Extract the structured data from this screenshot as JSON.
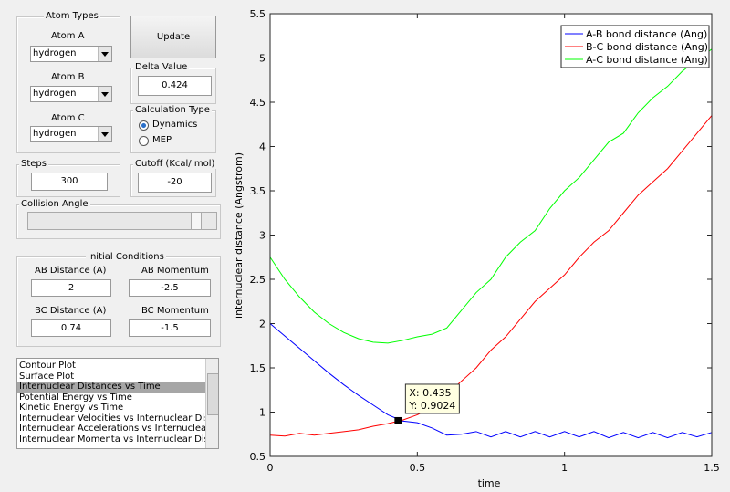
{
  "atom_types": {
    "title": "Atom Types",
    "atom_a_label": "Atom A",
    "atom_a": "hydrogen",
    "atom_b_label": "Atom B",
    "atom_b": "hydrogen",
    "atom_c_label": "Atom C",
    "atom_c": "hydrogen"
  },
  "update_button": "Update",
  "delta_value": {
    "label": "Delta Value",
    "value": "0.424"
  },
  "calculation_type": {
    "title": "Calculation Type",
    "options": [
      "Dynamics",
      "MEP"
    ],
    "selected": 0
  },
  "steps": {
    "label": "Steps",
    "value": "300"
  },
  "cutoff": {
    "label": "Cutoff (Kcal/ mol)",
    "value": "-20"
  },
  "collision_angle": {
    "label": "Collision Angle"
  },
  "initial_conditions": {
    "title": "Initial Conditions",
    "ab_distance_label": "AB Distance (A)",
    "ab_distance": "2",
    "ab_momentum_label": "AB Momentum",
    "ab_momentum": "-2.5",
    "bc_distance_label": "BC Distance (A)",
    "bc_distance": "0.74",
    "bc_momentum_label": "BC Momentum",
    "bc_momentum": "-1.5"
  },
  "plot_list": {
    "items": [
      "Contour Plot",
      "Surface Plot",
      "Internuclear Distances vs Time",
      "Potential Energy vs Time",
      "Kinetic Energy vs Time",
      "Internuclear Velocities vs Internuclear Distance",
      "Internuclear Accelerations vs Internuclear Distance",
      "Internuclear Momenta vs Internuclear Distance"
    ],
    "selected": 2
  },
  "chart_data": {
    "type": "line",
    "xlabel": "time",
    "ylabel": "internuclear distance (Angstrom)",
    "x": [
      0,
      0.05,
      0.1,
      0.15,
      0.2,
      0.25,
      0.3,
      0.35,
      0.4,
      0.45,
      0.5,
      0.55,
      0.6,
      0.65,
      0.7,
      0.75,
      0.8,
      0.85,
      0.9,
      0.95,
      1.0,
      1.05,
      1.1,
      1.15,
      1.2,
      1.25,
      1.3,
      1.35,
      1.4,
      1.45,
      1.5
    ],
    "series": [
      {
        "name": "A-B bond distance (Ang)",
        "color": "#0000ff",
        "values": [
          2.0,
          1.86,
          1.72,
          1.58,
          1.44,
          1.31,
          1.19,
          1.08,
          0.97,
          0.9,
          0.88,
          0.82,
          0.74,
          0.75,
          0.78,
          0.72,
          0.78,
          0.72,
          0.78,
          0.72,
          0.78,
          0.72,
          0.78,
          0.71,
          0.77,
          0.71,
          0.77,
          0.71,
          0.77,
          0.72,
          0.77
        ]
      },
      {
        "name": "B-C bond distance (Ang)",
        "color": "#ff0000",
        "values": [
          0.74,
          0.73,
          0.76,
          0.74,
          0.76,
          0.78,
          0.8,
          0.84,
          0.87,
          0.91,
          0.97,
          1.05,
          1.2,
          1.35,
          1.5,
          1.7,
          1.85,
          2.05,
          2.25,
          2.4,
          2.55,
          2.75,
          2.92,
          3.05,
          3.25,
          3.45,
          3.6,
          3.75,
          3.95,
          4.15,
          4.35
        ]
      },
      {
        "name": "A-C bond distance (Ang)",
        "color": "#00ff00",
        "values": [
          2.75,
          2.5,
          2.3,
          2.13,
          2.0,
          1.9,
          1.83,
          1.79,
          1.78,
          1.81,
          1.85,
          1.88,
          1.95,
          2.15,
          2.35,
          2.5,
          2.75,
          2.92,
          3.05,
          3.3,
          3.5,
          3.65,
          3.85,
          4.05,
          4.15,
          4.38,
          4.55,
          4.68,
          4.85,
          4.98,
          5.1
        ]
      }
    ],
    "xlim": [
      0,
      1.5
    ],
    "ylim": [
      0.5,
      5.5
    ],
    "xticks": [
      0,
      0.5,
      1,
      1.5
    ],
    "yticks": [
      0.5,
      1,
      1.5,
      2,
      2.5,
      3,
      3.5,
      4,
      4.5,
      5,
      5.5
    ],
    "legend": "northeast",
    "datatip": {
      "x": {
        "value": 0.435,
        "label": "X: 0.435"
      },
      "y": {
        "value": 0.9024,
        "label": "Y: 0.9024"
      }
    }
  }
}
